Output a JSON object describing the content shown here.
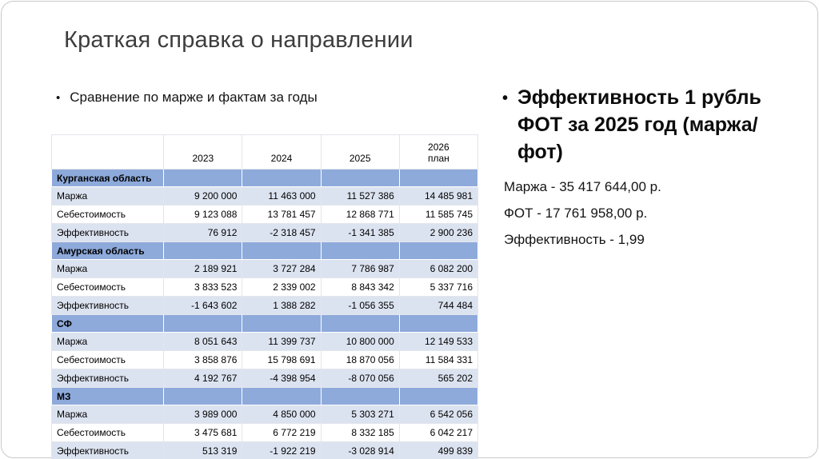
{
  "slide": {
    "title": "Краткая справка о направлении",
    "bullet_char": "•"
  },
  "left_section": {
    "bullet_text": "Сравнение по марже и фактам за годы"
  },
  "table": {
    "col_headers": [
      "",
      "2023",
      "2024",
      "2025",
      "2026\nплан"
    ],
    "sections": [
      {
        "name": "Курганская область",
        "rows": [
          {
            "label": "Маржа",
            "values": [
              "9 200 000",
              "11 463 000",
              "11 527 386",
              "14 485 981"
            ]
          },
          {
            "label": "Себестоимость",
            "values": [
              "9 123 088",
              "13 781 457",
              "12 868 771",
              "11 585 745"
            ]
          },
          {
            "label": "Эффективность",
            "values": [
              "76 912",
              "-2 318 457",
              "-1 341 385",
              "2 900 236"
            ]
          }
        ]
      },
      {
        "name": "Амурская область",
        "rows": [
          {
            "label": "Маржа",
            "values": [
              "2 189 921",
              "3 727 284",
              "7 786 987",
              "6 082 200"
            ]
          },
          {
            "label": "Себестоимость",
            "values": [
              "3 833 523",
              "2 339 002",
              "8 843 342",
              "5 337 716"
            ]
          },
          {
            "label": "Эффективность",
            "values": [
              "-1 643 602",
              "1 388 282",
              "-1 056 355",
              "744 484"
            ]
          }
        ]
      },
      {
        "name": "СФ",
        "rows": [
          {
            "label": "Маржа",
            "values": [
              "8 051 643",
              "11 399 737",
              "10 800 000",
              "12 149 533"
            ]
          },
          {
            "label": "Себестоимость",
            "values": [
              "3 858 876",
              "15 798 691",
              "18 870 056",
              "11 584 331"
            ]
          },
          {
            "label": "Эффективность",
            "values": [
              "4 192 767",
              "-4 398 954",
              "-8 070 056",
              "565 202"
            ]
          }
        ]
      },
      {
        "name": "МЗ",
        "rows": [
          {
            "label": "Маржа",
            "values": [
              "3 989 000",
              "4 850 000",
              "5 303 271",
              "6 542 056"
            ]
          },
          {
            "label": "Себестоимость",
            "values": [
              "3 475 681",
              "6 772 219",
              "8 332 185",
              "6 042 217"
            ]
          },
          {
            "label": "Эффективность",
            "values": [
              "513 319",
              "-1 922 219",
              "-3 028 914",
              "499 839"
            ]
          }
        ]
      }
    ]
  },
  "right_panel": {
    "heading": "Эффективность 1 рубль ФОТ за 2025 год (маржа/фот)",
    "lines": [
      "Маржа - 35 417 644,00 р.",
      "ФОТ -  17 761 958,00 р.",
      "Эффективность - 1,99"
    ]
  },
  "colors": {
    "accent_blue": "#8EAADB",
    "band_light": "#DCE3F0",
    "title_gray": "#3d3d3d"
  }
}
